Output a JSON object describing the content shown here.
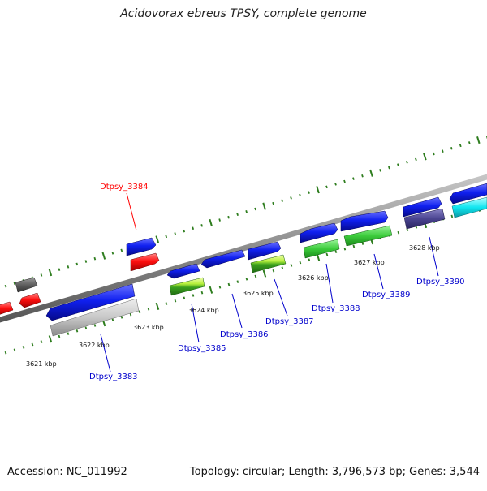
{
  "title": "Acidovorax ebreus TPSY, complete genome",
  "footer": {
    "accession": "Accession: NC_011992",
    "stats": "Topology: circular; Length: 3,796,573 bp; Genes: 3,544"
  },
  "scale_labels": [
    "3621 kbp",
    "3622 kbp",
    "3623 kbp",
    "3624 kbp",
    "3625 kbp",
    "3626 kbp",
    "3627 kbp",
    "3628 kbp"
  ],
  "gene_labels": [
    {
      "text": "Dtpsy_3384",
      "color": "#ff0000"
    },
    {
      "text": "Dtpsy_3383",
      "color": "#0000cc"
    },
    {
      "text": "Dtpsy_3385",
      "color": "#0000cc"
    },
    {
      "text": "Dtpsy_3386",
      "color": "#0000cc"
    },
    {
      "text": "Dtpsy_3387",
      "color": "#0000cc"
    },
    {
      "text": "Dtpsy_3388",
      "color": "#0000cc"
    },
    {
      "text": "Dtpsy_3389",
      "color": "#0000cc"
    },
    {
      "text": "Dtpsy_3390",
      "color": "#0000cc"
    }
  ],
  "colors": {
    "backbone": "#8c8c8c",
    "ticks": "#2e7d1e",
    "cds": "#0a14e8",
    "rna": "#ff1a1a"
  }
}
